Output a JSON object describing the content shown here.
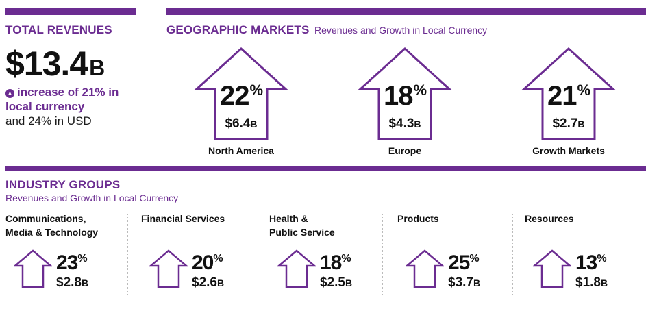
{
  "total": {
    "title": "TOTAL REVENUES",
    "value": "$13.4",
    "unit": "B",
    "increase_text": "increase of 21% in local currency",
    "usd_text": "and 24% in USD",
    "icon": "arrow-up-circle-icon"
  },
  "geo": {
    "title": "GEOGRAPHIC MARKETS",
    "subtitle": "Revenues and Growth in Local Currency",
    "items": [
      {
        "pct": "22",
        "pct_sign": "%",
        "amount": "$6.4",
        "unit": "B",
        "label": "North America"
      },
      {
        "pct": "18",
        "pct_sign": "%",
        "amount": "$4.3",
        "unit": "B",
        "label": "Europe"
      },
      {
        "pct": "21",
        "pct_sign": "%",
        "amount": "$2.7",
        "unit": "B",
        "label": "Growth Markets"
      }
    ]
  },
  "industry": {
    "title": "INDUSTRY GROUPS",
    "subtitle": "Revenues and Growth in Local Currency",
    "items": [
      {
        "name_l1": "Communications,",
        "name_l2": "Media & Technology",
        "pct": "23",
        "pct_sign": "%",
        "amount": "$2.8",
        "unit": "B"
      },
      {
        "name_l1": "Financial Services",
        "name_l2": "",
        "pct": "20",
        "pct_sign": "%",
        "amount": "$2.6",
        "unit": "B"
      },
      {
        "name_l1": "Health &",
        "name_l2": "Public Service",
        "pct": "18",
        "pct_sign": "%",
        "amount": "$2.5",
        "unit": "B"
      },
      {
        "name_l1": "Products",
        "name_l2": "",
        "pct": "25",
        "pct_sign": "%",
        "amount": "$3.7",
        "unit": "B"
      },
      {
        "name_l1": "Resources",
        "name_l2": "",
        "pct": "13",
        "pct_sign": "%",
        "amount": "$1.8",
        "unit": "B"
      }
    ]
  },
  "colors": {
    "accent": "#6b2c91"
  }
}
